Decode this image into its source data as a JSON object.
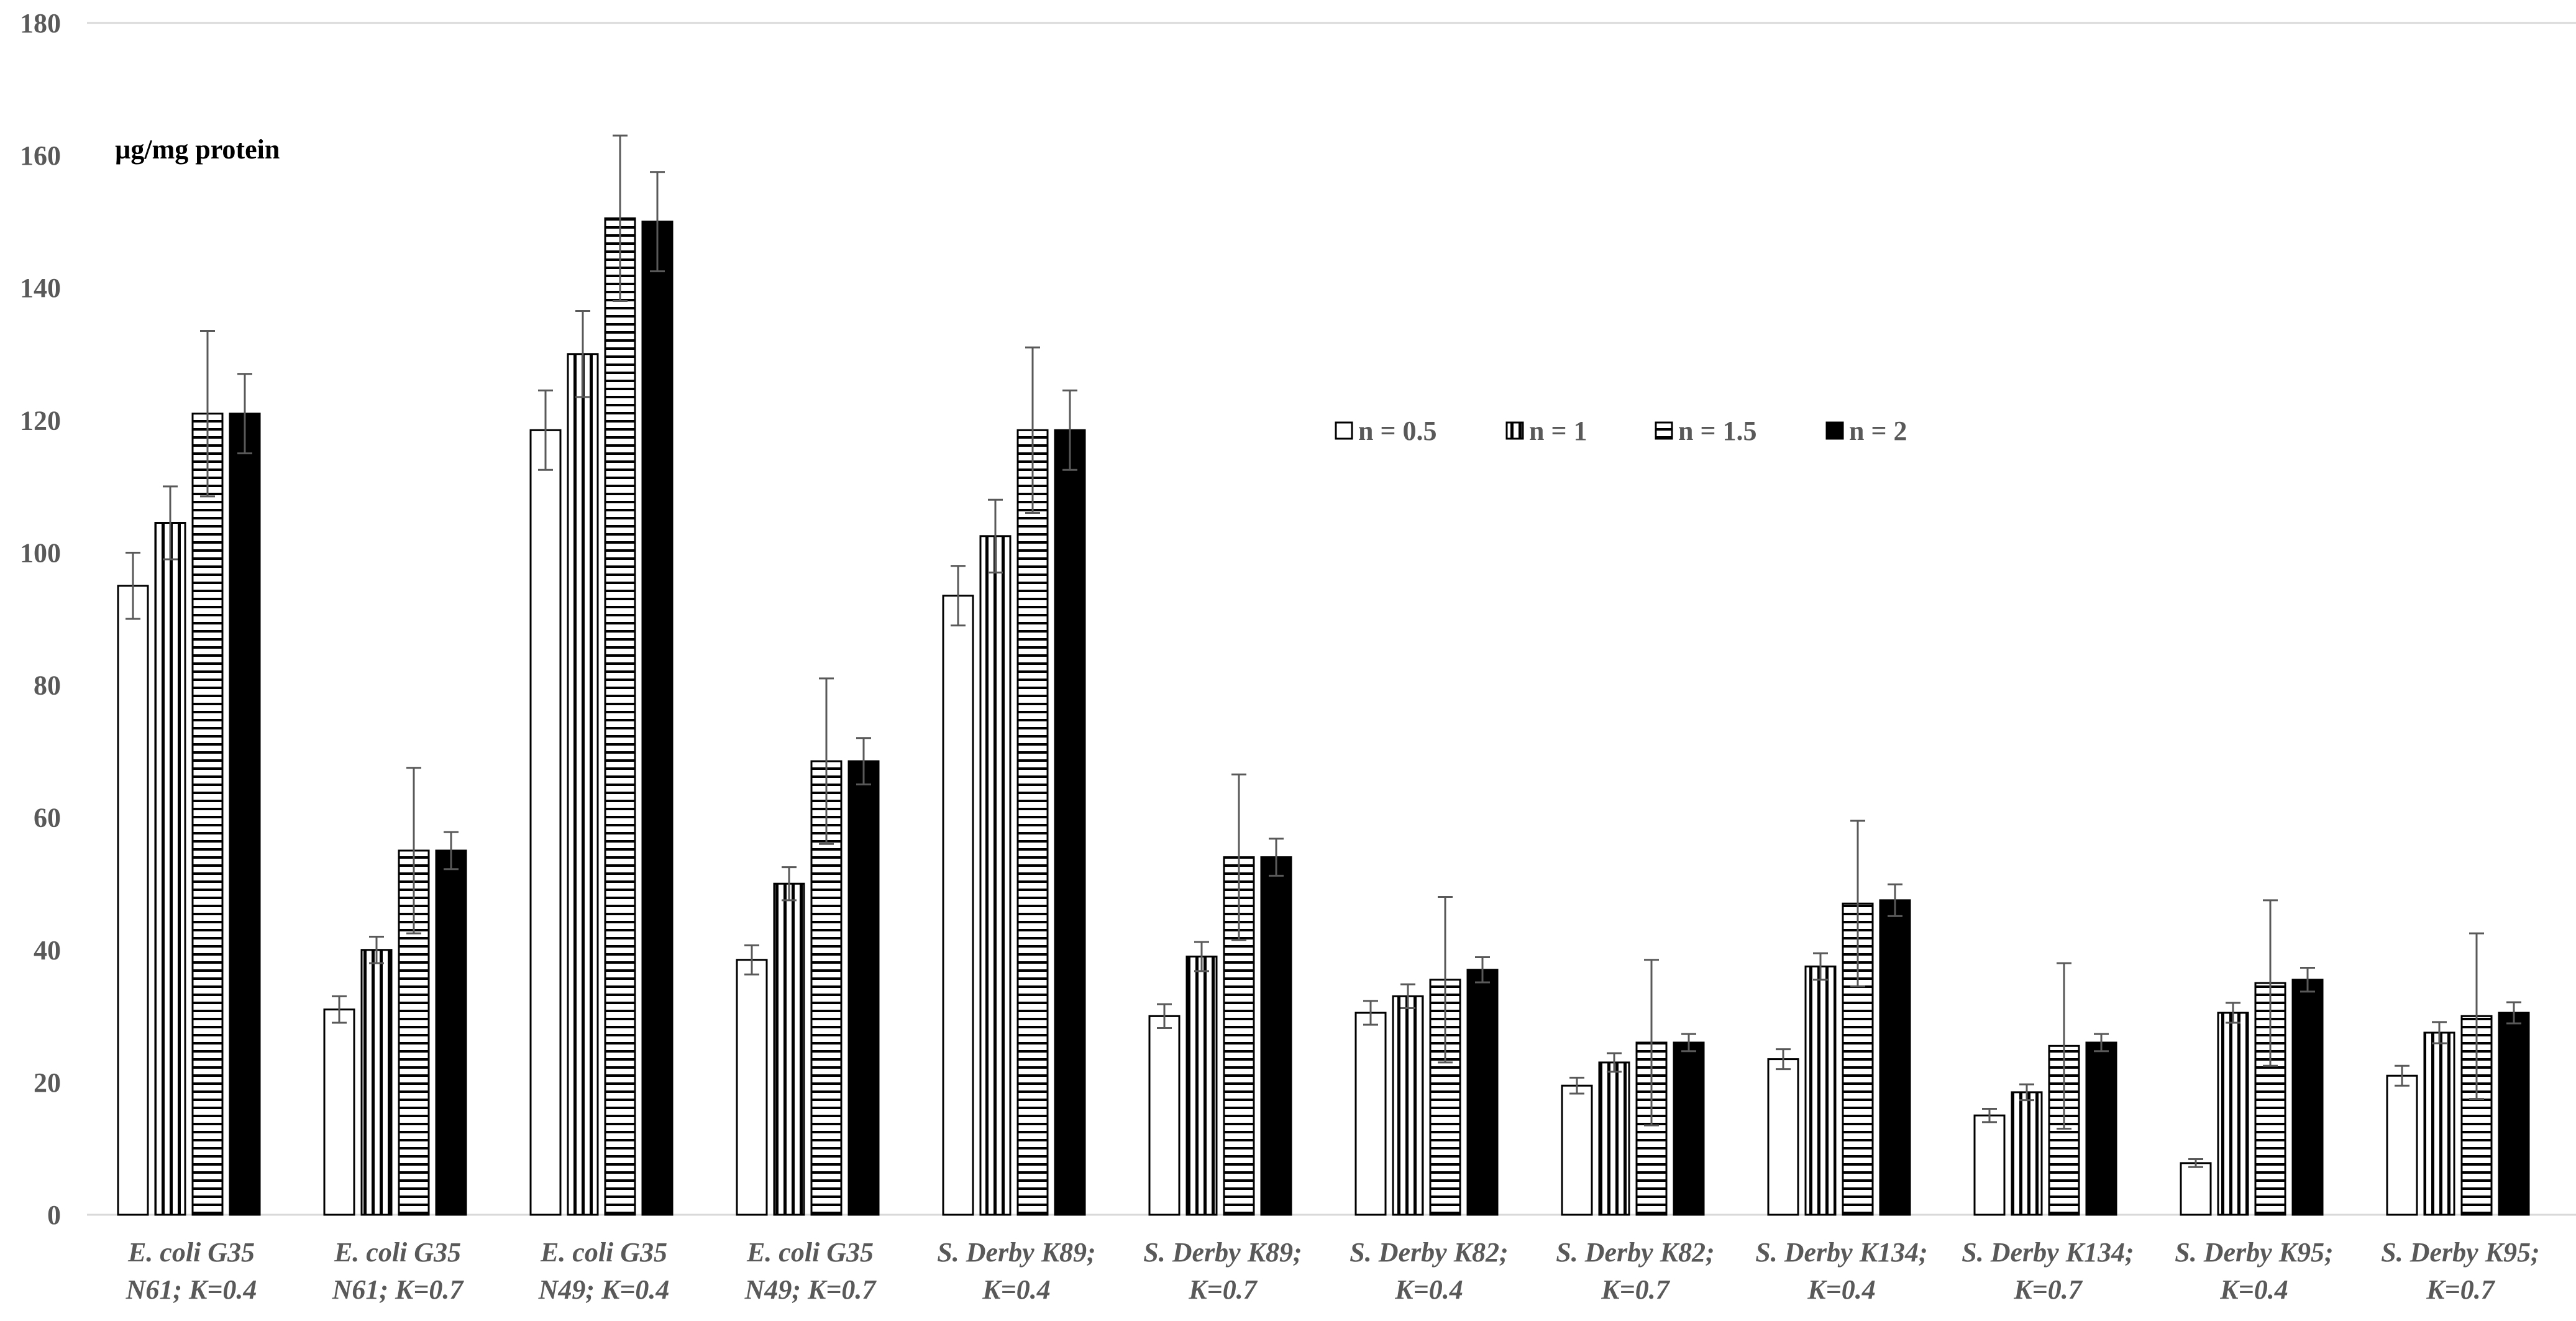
{
  "chart_data": {
    "type": "bar",
    "title": "",
    "ylabel": "µg/mg protein",
    "xlabel": "",
    "ylim": [
      0,
      180
    ],
    "yticks": [
      0,
      20,
      40,
      60,
      80,
      100,
      120,
      140,
      160,
      180
    ],
    "grid": false,
    "legend_position": "top-center",
    "categories": [
      [
        "E. coli G35",
        "N61; K=0.4"
      ],
      [
        "E. coli G35",
        "N61; K=0.7"
      ],
      [
        "E. coli G35",
        "N49; K=0.4"
      ],
      [
        "E. coli G35",
        "N49; K=0.7"
      ],
      [
        "S. Derby K89;",
        "K=0.4"
      ],
      [
        "S. Derby K89;",
        "K=0.7"
      ],
      [
        "S. Derby K82;",
        "K=0.4"
      ],
      [
        "S. Derby K82;",
        "K=0.7"
      ],
      [
        "S. Derby K134;",
        "K=0.4"
      ],
      [
        "S. Derby K134;",
        "K=0.7"
      ],
      [
        "S. Derby K95;",
        "K=0.4"
      ],
      [
        "S. Derby K95;",
        "K=0.7"
      ]
    ],
    "series": [
      {
        "name": "n = 0.5",
        "pattern": "empty",
        "values": [
          95,
          31,
          118.5,
          38.5,
          93.5,
          30,
          30.5,
          19.5,
          23.5,
          15,
          7.8,
          21
        ],
        "errors": [
          5,
          2,
          6,
          2.2,
          4.5,
          1.8,
          1.8,
          1.2,
          1.5,
          1,
          0.6,
          1.5
        ]
      },
      {
        "name": "n = 1",
        "pattern": "vertical",
        "values": [
          104.5,
          40,
          130,
          50,
          102.5,
          39,
          33,
          23,
          37.5,
          18.5,
          30.5,
          27.5
        ],
        "errors": [
          5.5,
          2,
          6.5,
          2.5,
          5.5,
          2.2,
          1.8,
          1.4,
          2,
          1.2,
          1.5,
          1.6
        ]
      },
      {
        "name": "n = 1.5",
        "pattern": "horizontal",
        "values": [
          121,
          55,
          150.5,
          68.5,
          118.5,
          54,
          35.5,
          26,
          47,
          25.5,
          35,
          30
        ],
        "errors": [
          12.5,
          12.5,
          12.5,
          12.5,
          12.5,
          12.5,
          12.5,
          12.5,
          12.5,
          12.5,
          12.5,
          12.5
        ]
      },
      {
        "name": "n = 2",
        "pattern": "solid",
        "values": [
          121,
          55,
          150,
          68.5,
          118.5,
          54,
          37,
          26,
          47.5,
          26,
          35.5,
          30.5
        ],
        "errors": [
          6,
          2.8,
          7.5,
          3.5,
          6,
          2.8,
          1.9,
          1.3,
          2.4,
          1.3,
          1.8,
          1.6
        ]
      }
    ]
  },
  "colors": {
    "bar_stroke": "#000000",
    "bar_fill_solid": "#000000",
    "bar_fill_empty": "#ffffff",
    "axis": "#d9d9d9",
    "tick_text": "#595959",
    "category_text": "#595959",
    "error_bar": "#595959",
    "ylabel_text": "#000000"
  }
}
